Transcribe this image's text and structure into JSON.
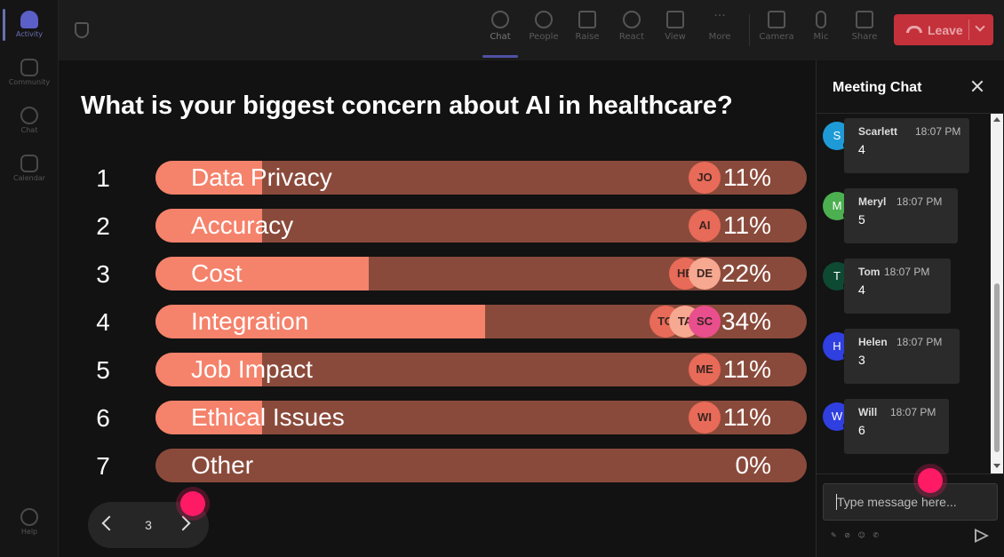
{
  "rail": {
    "items": [
      {
        "label": "Activity",
        "active": true
      },
      {
        "label": "Community",
        "active": false
      },
      {
        "label": "Chat",
        "active": false
      },
      {
        "label": "Calendar",
        "active": false
      }
    ],
    "help_label": "Help"
  },
  "toolbar": {
    "items": [
      {
        "label": "Chat",
        "icon": "chat-icon",
        "active": true
      },
      {
        "label": "People",
        "icon": "people-icon",
        "active": false
      },
      {
        "label": "Raise",
        "icon": "raise-hand-icon",
        "active": false
      },
      {
        "label": "React",
        "icon": "react-icon",
        "active": false
      },
      {
        "label": "View",
        "icon": "view-icon",
        "active": false
      },
      {
        "label": "More",
        "icon": "more-icon",
        "active": false
      },
      {
        "label": "Camera",
        "icon": "camera-icon",
        "active": false
      },
      {
        "label": "Mic",
        "icon": "mic-icon",
        "active": false
      },
      {
        "label": "Share",
        "icon": "share-icon",
        "active": false
      }
    ],
    "leave_label": "Leave"
  },
  "poll": {
    "question": "What is your biggest concern about AI in healthcare?",
    "options": [
      {
        "num": "1",
        "label": "Data Privacy",
        "percent_label": "11%",
        "percent": 11,
        "voters": [
          "JO"
        ]
      },
      {
        "num": "2",
        "label": "Accuracy",
        "percent_label": "11%",
        "percent": 11,
        "voters": [
          "AI"
        ]
      },
      {
        "num": "3",
        "label": "Cost",
        "percent_label": "22%",
        "percent": 22,
        "voters": [
          "HE",
          "DE"
        ]
      },
      {
        "num": "4",
        "label": "Integration",
        "percent_label": "34%",
        "percent": 34,
        "voters": [
          "TO",
          "TA",
          "SC"
        ]
      },
      {
        "num": "5",
        "label": "Job Impact",
        "percent_label": "11%",
        "percent": 11,
        "voters": [
          "ME"
        ]
      },
      {
        "num": "6",
        "label": "Ethical Issues",
        "percent_label": "11%",
        "percent": 11,
        "voters": [
          "WI"
        ]
      },
      {
        "num": "7",
        "label": "Other",
        "percent_label": "0%",
        "percent": 0,
        "voters": []
      }
    ],
    "page": "3"
  },
  "chat": {
    "title": "Meeting Chat",
    "messages": [
      {
        "initial": "S",
        "name": "Scarlett",
        "time": "18:07 PM",
        "text": "4",
        "color": "#1e9bd7"
      },
      {
        "initial": "M",
        "name": "Meryl",
        "time": "18:07 PM",
        "text": "5",
        "color": "#4caf50"
      },
      {
        "initial": "T",
        "name": "Tom",
        "time": "18:07 PM",
        "text": "4",
        "color": "#0e4a33"
      },
      {
        "initial": "H",
        "name": "Helen",
        "time": "18:07 PM",
        "text": "3",
        "color": "#2f3fe0"
      },
      {
        "initial": "W",
        "name": "Will",
        "time": "18:07 PM",
        "text": "6",
        "color": "#2f3fe0"
      }
    ],
    "input_placeholder": "Type message here..."
  },
  "colors": {
    "bar_fill": "#f5826b",
    "bar_track": "#8a4a3b",
    "leave": "#c4313b",
    "accent": "#5b5fc7"
  }
}
